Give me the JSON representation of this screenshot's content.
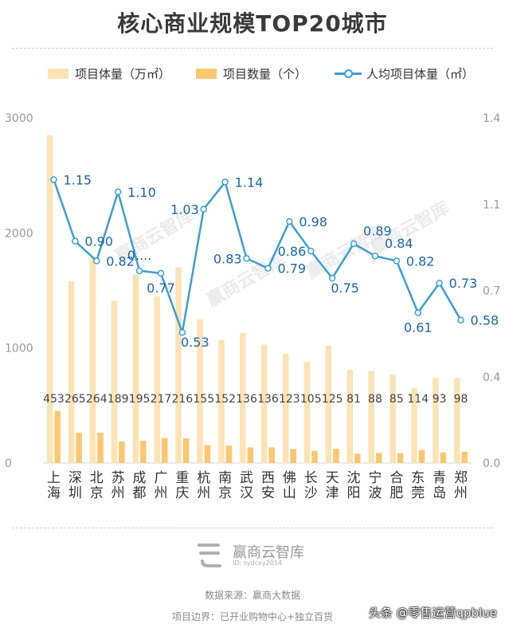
{
  "title": "核心商业规模TOP20城市",
  "legend": {
    "area": "项目体量（万㎡）",
    "count": "项目数量（个）",
    "per": "人均项目体量（㎡）"
  },
  "colors": {
    "area": "#fde3b4",
    "count": "#fcc770",
    "line": "#3a9fd6",
    "label": "#1a66a8"
  },
  "watermark": "赢商云智库",
  "logo": {
    "text": "赢商云智库",
    "id": "ID: sydcxy2014"
  },
  "footer": {
    "source": "数据来源：赢商大数据",
    "scope": "项目边界：已开业购物中心+独立百货",
    "credit": "头条 @零售运营qpblue"
  },
  "chart_data": {
    "type": "bar",
    "categories": [
      "上海",
      "深圳",
      "北京",
      "苏州",
      "成都",
      "广州",
      "重庆",
      "杭州",
      "南京",
      "武汉",
      "西安",
      "佛山",
      "长沙",
      "天津",
      "沈阳",
      "宁波",
      "合肥",
      "东莞",
      "青岛",
      "郑州"
    ],
    "y_left": {
      "ylim": [
        0,
        3000
      ],
      "ticks": [
        "0",
        "1000",
        "2000",
        "3000"
      ]
    },
    "y_right": {
      "ylim": [
        0,
        1.4
      ],
      "ticks": [
        "0.0",
        "0.4",
        "0.7",
        "1.1",
        "1.4"
      ]
    },
    "series": [
      {
        "name": "项目体量（万㎡）",
        "type": "bar",
        "axis": "left",
        "values": [
          2850,
          1580,
          1790,
          1410,
          1640,
          1450,
          1700,
          1250,
          1070,
          1130,
          1030,
          950,
          880,
          1020,
          810,
          800,
          770,
          650,
          740,
          740
        ]
      },
      {
        "name": "项目数量（个）",
        "type": "bar",
        "axis": "left",
        "values": [
          453,
          265,
          264,
          189,
          195,
          217,
          216,
          155,
          152,
          136,
          136,
          123,
          105,
          125,
          81,
          88,
          85,
          114,
          93,
          98
        ],
        "labels": [
          "453",
          "265",
          "264",
          "189",
          "195",
          "217",
          "216",
          "155",
          "152",
          "136",
          "136",
          "123",
          "105",
          "125",
          "81",
          "88",
          "85",
          "114",
          "93",
          "98"
        ]
      },
      {
        "name": "人均项目体量（㎡）",
        "type": "line",
        "axis": "right",
        "values": [
          1.15,
          0.9,
          0.82,
          1.1,
          0.78,
          0.77,
          0.53,
          1.03,
          1.14,
          0.83,
          0.79,
          0.98,
          0.86,
          0.75,
          0.89,
          0.84,
          0.82,
          0.61,
          0.73,
          0.58
        ],
        "labels": [
          "1.15",
          "0.90",
          "0.82",
          "1.10",
          "0....",
          "0.77",
          "0.53",
          "1.03",
          "1.14",
          "0.83",
          "0.79",
          "0.98",
          "0.86",
          "0.75",
          "0.89",
          "0.84",
          "0.82",
          "0.61",
          "0.73",
          "0.58"
        ]
      }
    ],
    "grid": false,
    "legend_position": "top"
  }
}
